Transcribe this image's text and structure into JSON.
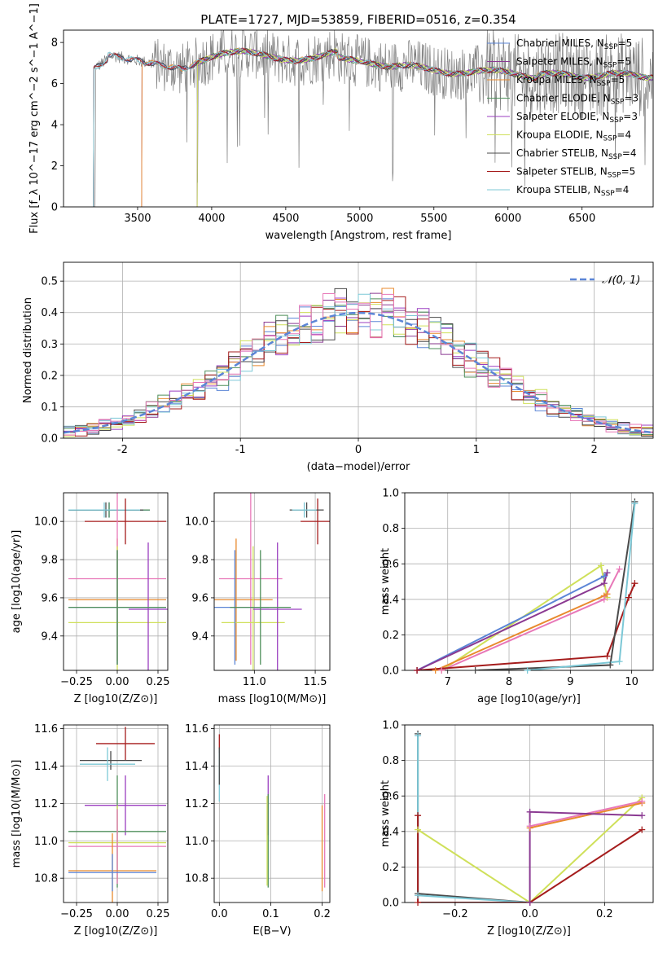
{
  "figure_title": "PLATE=1727, MJD=53859, FIBERID=0516, z=0.354",
  "colors": {
    "c1": "#5b85d6",
    "c2": "#8b3a92",
    "c3": "#e88a2e",
    "c4": "#4f8f5b",
    "c5": "#9b3fc0",
    "c6": "#cfe05a",
    "c7": "#4a4a4a",
    "c8": "#a51c1c",
    "c9": "#7cc8d6",
    "pink": "#e878b8",
    "grid": "#b0b0b0",
    "normal": "#5b85d6"
  },
  "chart_data": [
    {
      "type": "line",
      "title": "PLATE=1727, MJD=53859, FIBERID=0516, z=0.354",
      "xlabel": "wavelength [Angstrom, rest frame]",
      "ylabel": "Flux [f_λ 10^-17 erg cm^-2 s^-1 A^-1]",
      "xlim": [
        3000,
        6980
      ],
      "ylim": [
        0,
        8.6
      ],
      "xticks": [
        3500,
        4000,
        4500,
        5000,
        5500,
        6000,
        6500
      ],
      "yticks": [
        0,
        2,
        4,
        6,
        8
      ],
      "legend_placement": "right",
      "series": [
        {
          "name": "Chabrier MILES, N_SSP=5",
          "color_key": "c1",
          "start": 3205
        },
        {
          "name": "Salpeter MILES, N_SSP=5",
          "color_key": "c2",
          "start": 3530
        },
        {
          "name": "Kroupa MILES, N_SSP=5",
          "color_key": "c3",
          "start": 3530
        },
        {
          "name": "Chabrier ELODIE, N_SSP=3",
          "color_key": "c4",
          "start": 3905
        },
        {
          "name": "Salpeter ELODIE, N_SSP=3",
          "color_key": "c5",
          "start": 3905
        },
        {
          "name": "Kroupa ELODIE, N_SSP=4",
          "color_key": "c6",
          "start": 3905
        },
        {
          "name": "Chabrier STELIB, N_SSP=4",
          "color_key": "c7",
          "start": 3205
        },
        {
          "name": "Salpeter STELIB, N_SSP=5",
          "color_key": "c8",
          "start": 3205
        },
        {
          "name": "Kroupa STELIB, N_SSP=4",
          "color_key": "c9",
          "start": 3205
        }
      ],
      "data_color": "#808080"
    },
    {
      "type": "histogram",
      "xlabel": "(data-model)/error",
      "ylabel": "Normed distribution",
      "xlim": [
        -2.5,
        2.5
      ],
      "ylim": [
        0,
        0.56
      ],
      "xticks": [
        -2,
        -1,
        0,
        1,
        2
      ],
      "yticks": [
        0.0,
        0.1,
        0.2,
        0.3,
        0.4,
        0.5
      ],
      "legend": "𝒩(0, 1)",
      "legend_placement": "top-right",
      "bin_width": 0.1,
      "grid": true
    },
    {
      "type": "errorbar",
      "xlabel": "Z [log10(Z/Z⊙)]",
      "ylabel": "age [log10(age/yr)]",
      "xlim": [
        -0.33,
        0.31
      ],
      "ylim": [
        9.22,
        10.15
      ],
      "xticks": [
        -0.25,
        0.0,
        0.25
      ],
      "yticks": [
        9.4,
        9.6,
        9.8,
        10.0
      ],
      "points": [
        {
          "c": "c1",
          "x": -0.05,
          "xe": 0.25,
          "y": 10.06,
          "ye": 0.04
        },
        {
          "c": "c4",
          "x": -0.05,
          "xe": 0.25,
          "y": 10.06,
          "ye": 0.04
        },
        {
          "c": "c7",
          "x": -0.07,
          "xe": 0.23,
          "y": 10.06,
          "ye": 0.04
        },
        {
          "c": "c9",
          "x": -0.08,
          "xe": 0.22,
          "y": 10.06,
          "ye": 0.04
        },
        {
          "c": "c8",
          "x": 0.05,
          "xe": 0.25,
          "y": 10.0,
          "ye": 0.12
        },
        {
          "c": "c3",
          "x": 0.0,
          "xe": 0.3,
          "y": 9.59,
          "ye": 0.32
        },
        {
          "c": "pink",
          "x": 0.0,
          "xe": 0.3,
          "y": 9.7,
          "ye": 0.45
        },
        {
          "c": "c6",
          "x": 0.0,
          "xe": 0.3,
          "y": 9.47,
          "ye": 0.4
        },
        {
          "c": "c5",
          "x": 0.19,
          "xe": 0.12,
          "y": 9.54,
          "ye": 0.35
        },
        {
          "c": "c1",
          "x": 0.0,
          "xe": 0.3,
          "y": 9.55,
          "ye": 0.3
        },
        {
          "c": "c4",
          "x": 0.0,
          "xe": 0.3,
          "y": 9.55,
          "ye": 0.3
        }
      ]
    },
    {
      "type": "errorbar",
      "xlabel": "mass [log10(M/M⊙)]",
      "xlim": [
        10.67,
        11.62
      ],
      "ylim": [
        9.22,
        10.15
      ],
      "xticks": [
        11.0,
        11.5
      ],
      "yticks": [
        9.4,
        9.6,
        9.8,
        10.0
      ],
      "points": [
        {
          "c": "c8",
          "x": 11.52,
          "xe": 0.14,
          "y": 10.0,
          "ye": 0.12
        },
        {
          "c": "c7",
          "x": 11.43,
          "xe": 0.14,
          "y": 10.06,
          "ye": 0.04
        },
        {
          "c": "c9",
          "x": 11.41,
          "xe": 0.1,
          "y": 10.06,
          "ye": 0.04
        },
        {
          "c": "pink",
          "x": 10.97,
          "xe": 0.26,
          "y": 9.7,
          "ye": 0.45
        },
        {
          "c": "c3",
          "x": 10.85,
          "xe": 0.3,
          "y": 9.59,
          "ye": 0.32
        },
        {
          "c": "c6",
          "x": 10.99,
          "xe": 0.26,
          "y": 9.47,
          "ye": 0.4
        },
        {
          "c": "c5",
          "x": 11.19,
          "xe": 0.2,
          "y": 9.54,
          "ye": 0.35
        },
        {
          "c": "c1",
          "x": 10.84,
          "xe": 0.28,
          "y": 9.55,
          "ye": 0.3
        },
        {
          "c": "c4",
          "x": 11.05,
          "xe": 0.25,
          "y": 9.55,
          "ye": 0.3
        }
      ]
    },
    {
      "type": "line",
      "xlabel": "age [log10(age/yr)]",
      "ylabel": "mass weight",
      "xlim": [
        6.3,
        10.35
      ],
      "ylim": [
        0,
        1.0
      ],
      "xticks": [
        7,
        8,
        9,
        10
      ],
      "yticks": [
        0.0,
        0.2,
        0.4,
        0.6,
        0.8,
        1.0
      ],
      "series": [
        {
          "c": "c6",
          "x": [
            6.9,
            9.5,
            9.6
          ],
          "y": [
            0.0,
            0.59,
            0.41
          ]
        },
        {
          "c": "c1",
          "x": [
            6.5,
            9.55,
            9.6
          ],
          "y": [
            0.0,
            0.53,
            0.55
          ]
        },
        {
          "c": "c2",
          "x": [
            6.5,
            9.55,
            9.6
          ],
          "y": [
            0.0,
            0.49,
            0.55
          ]
        },
        {
          "c": "c3",
          "x": [
            6.8,
            9.55,
            9.6
          ],
          "y": [
            0.0,
            0.42,
            0.43
          ]
        },
        {
          "c": "pink",
          "x": [
            6.9,
            9.55,
            9.8
          ],
          "y": [
            0.0,
            0.4,
            0.57
          ]
        },
        {
          "c": "c8",
          "x": [
            6.5,
            9.6,
            9.95,
            10.05
          ],
          "y": [
            0.0,
            0.08,
            0.41,
            0.49
          ]
        },
        {
          "c": "c7",
          "x": [
            7.45,
            9.65,
            10.05
          ],
          "y": [
            0.0,
            0.03,
            0.95
          ]
        },
        {
          "c": "c9",
          "x": [
            8.3,
            9.8,
            10.05
          ],
          "y": [
            0.0,
            0.05,
            0.94
          ]
        }
      ]
    },
    {
      "type": "errorbar",
      "xlabel": "Z [log10(Z/Z⊙)]",
      "ylabel": "mass [log10(M/M⊙)]",
      "xlim": [
        -0.33,
        0.31
      ],
      "ylim": [
        10.67,
        11.62
      ],
      "xticks": [
        -0.25,
        0.0,
        0.25
      ],
      "yticks": [
        10.8,
        11.0,
        11.2,
        11.4,
        11.6
      ],
      "points": [
        {
          "c": "c8",
          "x": 0.05,
          "xe": 0.18,
          "y": 11.52,
          "ye": 0.09
        },
        {
          "c": "c7",
          "x": -0.04,
          "xe": 0.19,
          "y": 11.43,
          "ye": 0.05
        },
        {
          "c": "c9",
          "x": -0.06,
          "xe": 0.17,
          "y": 11.41,
          "ye": 0.09
        },
        {
          "c": "c5",
          "x": 0.05,
          "xe": 0.25,
          "y": 11.19,
          "ye": 0.16
        },
        {
          "c": "c4",
          "x": 0.0,
          "xe": 0.3,
          "y": 11.05,
          "ye": 0.3
        },
        {
          "c": "c6",
          "x": 0.0,
          "xe": 0.3,
          "y": 10.99,
          "ye": 0.2
        },
        {
          "c": "pink",
          "x": 0.0,
          "xe": 0.3,
          "y": 10.97,
          "ye": 0.2
        },
        {
          "c": "c3",
          "x": -0.03,
          "xe": 0.27,
          "y": 10.84,
          "ye": 0.2
        },
        {
          "c": "c1",
          "x": -0.03,
          "xe": 0.27,
          "y": 10.83,
          "ye": 0.1
        }
      ]
    },
    {
      "type": "errorbar",
      "xlabel": "E(B-V)",
      "xlim": [
        -0.01,
        0.215
      ],
      "ylim": [
        10.67,
        11.62
      ],
      "xticks": [
        0.0,
        0.1,
        0.2
      ],
      "yticks": [
        10.8,
        11.0,
        11.2,
        11.4,
        11.6
      ],
      "points": [
        {
          "c": "c8",
          "x": 0.0,
          "xe": 0.0,
          "y": 11.52,
          "ye": 0.05
        },
        {
          "c": "c9",
          "x": 0.0,
          "xe": 0.0,
          "y": 11.35,
          "ye": 0.14
        },
        {
          "c": "c7",
          "x": 0.0,
          "xe": 0.0,
          "y": 11.4,
          "ye": 0.1
        },
        {
          "c": "c5",
          "x": 0.095,
          "xe": 0.0,
          "y": 11.19,
          "ye": 0.16
        },
        {
          "c": "c4",
          "x": 0.095,
          "xe": 0.0,
          "y": 11.0,
          "ye": 0.25
        },
        {
          "c": "c6",
          "x": 0.093,
          "xe": 0.0,
          "y": 11.0,
          "ye": 0.24
        },
        {
          "c": "c3",
          "x": 0.2,
          "xe": 0.0,
          "y": 10.96,
          "ye": 0.23
        },
        {
          "c": "pink",
          "x": 0.205,
          "xe": 0.0,
          "y": 11.0,
          "ye": 0.25
        }
      ]
    },
    {
      "type": "line",
      "xlabel": "Z [log10(Z/Z⊙)]",
      "ylabel": "mass weight",
      "xlim": [
        -0.335,
        0.33
      ],
      "ylim": [
        0,
        1.0
      ],
      "xticks": [
        -0.2,
        0.0,
        0.2
      ],
      "yticks": [
        0.0,
        0.2,
        0.4,
        0.6,
        0.8,
        1.0
      ],
      "series": [
        {
          "c": "c6",
          "x": [
            -0.3,
            0.0,
            0.3
          ],
          "y": [
            0.41,
            0.0,
            0.59
          ]
        },
        {
          "c": "c7",
          "x": [
            -0.3,
            -0.3,
            0.0
          ],
          "y": [
            0.95,
            0.05,
            0.0
          ]
        },
        {
          "c": "c9",
          "x": [
            -0.3,
            -0.3,
            0.0
          ],
          "y": [
            0.94,
            0.04,
            0.0
          ]
        },
        {
          "c": "c8",
          "x": [
            -0.3,
            -0.3,
            0.0,
            0.3
          ],
          "y": [
            0.49,
            0.0,
            0.0,
            0.41
          ]
        },
        {
          "c": "c3",
          "x": [
            0.0,
            0.3
          ],
          "y": [
            0.42,
            0.56
          ]
        },
        {
          "c": "pink",
          "x": [
            0.0,
            0.3
          ],
          "y": [
            0.43,
            0.57
          ]
        },
        {
          "c": "c2",
          "x": [
            0.0,
            0.0,
            0.3
          ],
          "y": [
            0.0,
            0.51,
            0.49
          ]
        }
      ]
    }
  ]
}
